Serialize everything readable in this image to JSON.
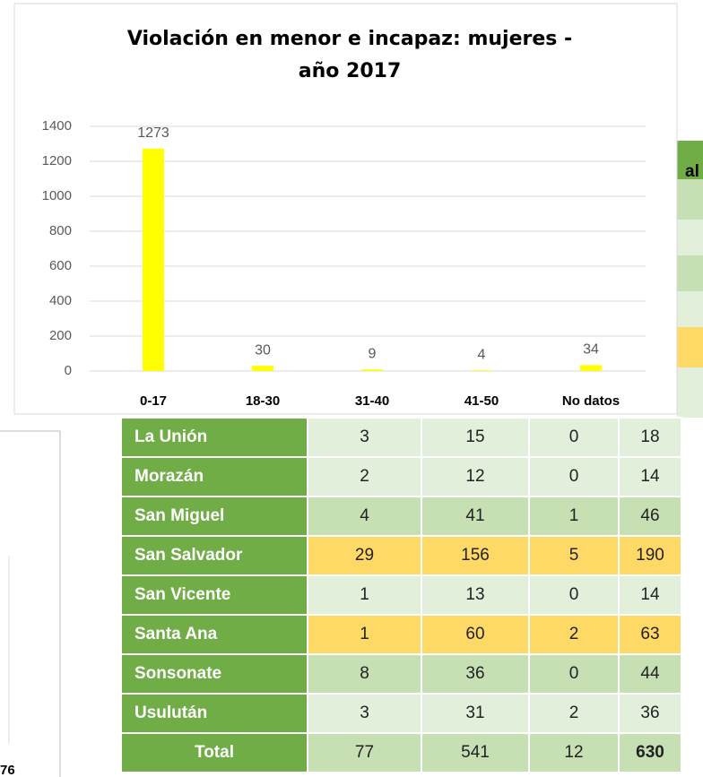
{
  "chart_data": {
    "type": "bar",
    "title": "Violación en menor e incapaz: mujeres - año 2017",
    "categories": [
      "0-17",
      "18-30",
      "31-40",
      "41-50",
      "No datos"
    ],
    "values": [
      1273,
      30,
      9,
      4,
      34
    ],
    "color": "#ffff00",
    "ylim": [
      0,
      1400
    ],
    "yticks": [
      0,
      200,
      400,
      600,
      800,
      1000,
      1200,
      1400
    ],
    "grid": true
  },
  "table": {
    "header_fragment": "al",
    "rows": [
      [
        "La Unión",
        3,
        15,
        0,
        18
      ],
      [
        "Morazán",
        2,
        12,
        0,
        14
      ],
      [
        "San Miguel",
        4,
        41,
        1,
        46
      ],
      [
        "San Salvador",
        29,
        156,
        5,
        190
      ],
      [
        "San Vicente",
        1,
        13,
        0,
        14
      ],
      [
        "Santa Ana",
        1,
        60,
        2,
        63
      ],
      [
        "Sonsonate",
        8,
        36,
        0,
        44
      ],
      [
        "Usulután",
        3,
        31,
        2,
        36
      ],
      [
        "Total",
        77,
        541,
        12,
        630
      ]
    ]
  },
  "page_fragment": "76"
}
